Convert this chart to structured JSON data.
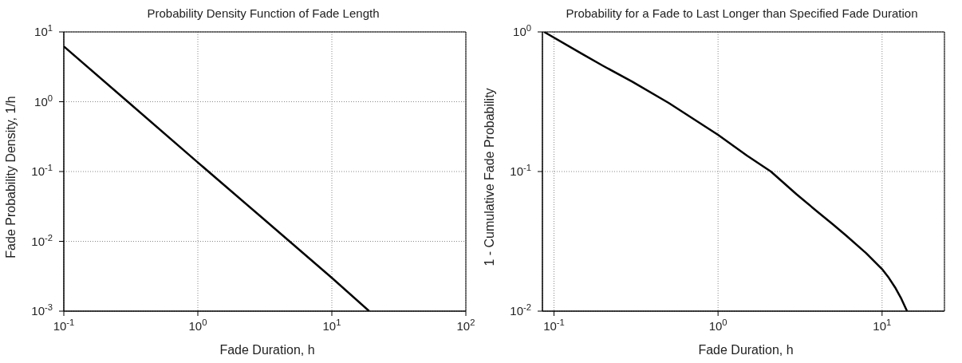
{
  "chart_data": [
    {
      "type": "line",
      "title": "Probability Density Function of Fade Length",
      "xlabel": "Fade Duration, h",
      "ylabel": "Fade Probability Density, 1/h",
      "log": "xy",
      "grid": true,
      "legend": false,
      "marker": "none",
      "line_style": "solid",
      "x": [
        0.1,
        0.3,
        1,
        3,
        10,
        19
      ],
      "series": [
        {
          "color": "#000000",
          "values": [
            6.2,
            1.0,
            0.135,
            0.022,
            0.003,
            0.001
          ]
        }
      ],
      "xlim": [
        0.1,
        100
      ],
      "ylim": [
        0.001,
        10
      ],
      "xticks": [
        {
          "value": 0.1,
          "label": "10$^{-1}$"
        },
        {
          "value": 1,
          "label": "10$^{0}$"
        },
        {
          "value": 10,
          "label": "10$^{1}$"
        },
        {
          "value": 100,
          "label": "10$^{2}$"
        }
      ],
      "yticks": [
        {
          "value": 0.001,
          "label": "10$^{-3}$"
        },
        {
          "value": 0.01,
          "label": "10$^{-2}$"
        },
        {
          "value": 0.1,
          "label": "10$^{-1}$"
        },
        {
          "value": 1,
          "label": "10$^{0}$"
        },
        {
          "value": 10,
          "label": "10$^{1}$"
        }
      ]
    },
    {
      "type": "line",
      "title": "Probability for a Fade to Last Longer than Specified Fade Duration",
      "xlabel": "Fade Duration, h",
      "ylabel": "1 - Cumulative Fade Probability",
      "log": "xy",
      "grid": true,
      "legend": false,
      "marker": "none",
      "line_style": "solid",
      "x": [
        0.087,
        0.15,
        0.2,
        0.3,
        0.5,
        1,
        1.5,
        2.1,
        3,
        4,
        5,
        6,
        8,
        10,
        11,
        12,
        13,
        14.2
      ],
      "series": [
        {
          "color": "#000000",
          "values": [
            1.0,
            0.69,
            0.57,
            0.44,
            0.31,
            0.183,
            0.13,
            0.1,
            0.069,
            0.052,
            0.042,
            0.035,
            0.026,
            0.02,
            0.0173,
            0.0148,
            0.0125,
            0.01
          ]
        }
      ],
      "xlim": [
        0.085,
        24
      ],
      "ylim": [
        0.01,
        1
      ],
      "xticks": [
        {
          "value": 0.1,
          "label": "10$^{-1}$"
        },
        {
          "value": 1,
          "label": "10$^{0}$"
        },
        {
          "value": 10,
          "label": "10$^{1}$"
        }
      ],
      "yticks": [
        {
          "value": 0.01,
          "label": "10$^{-2}$"
        },
        {
          "value": 0.1,
          "label": "10$^{-1}$"
        },
        {
          "value": 1,
          "label": "10$^{0}$"
        }
      ]
    }
  ]
}
